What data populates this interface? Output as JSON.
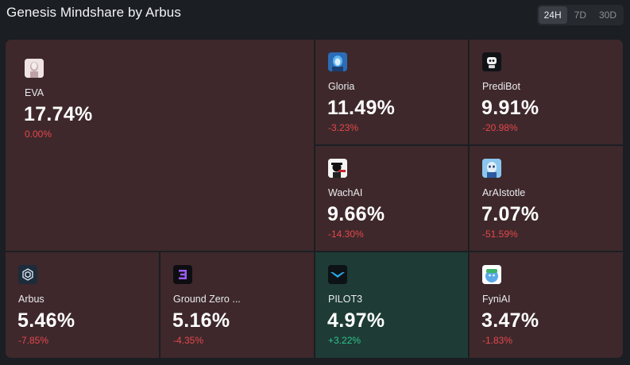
{
  "header": {
    "title": "Genesis Mindshare by Arbus",
    "ranges": [
      "24H",
      "7D",
      "30D"
    ],
    "active_range": "24H"
  },
  "colors": {
    "negative_tile": "#3e282b",
    "positive_tile": "#1e3b35",
    "negative_text": "#e5484d",
    "positive_text": "#30c48d"
  },
  "tiles": [
    {
      "name": "EVA",
      "share": "17.74%",
      "change": "0.00%",
      "trend": "down",
      "icon": "eva-avatar-icon"
    },
    {
      "name": "Gloria",
      "share": "11.49%",
      "change": "-3.23%",
      "trend": "down",
      "icon": "gloria-avatar-icon"
    },
    {
      "name": "PrediBot",
      "share": "9.91%",
      "change": "-20.98%",
      "trend": "down",
      "icon": "predibot-robot-icon"
    },
    {
      "name": "WachAI",
      "share": "9.66%",
      "change": "-14.30%",
      "trend": "down",
      "icon": "wachai-avatar-icon"
    },
    {
      "name": "ArAIstotle",
      "share": "7.07%",
      "change": "-51.59%",
      "trend": "down",
      "icon": "araistotle-avatar-icon"
    },
    {
      "name": "Arbus",
      "share": "5.46%",
      "change": "-7.85%",
      "trend": "down",
      "icon": "arbus-logo-icon"
    },
    {
      "name": "Ground Zero ...",
      "share": "5.16%",
      "change": "-4.35%",
      "trend": "down",
      "icon": "ground-zero-logo-icon"
    },
    {
      "name": "PILOT3",
      "share": "4.97%",
      "change": "+3.22%",
      "trend": "up",
      "icon": "pilot3-logo-icon"
    },
    {
      "name": "FyniAI",
      "share": "3.47%",
      "change": "-1.83%",
      "trend": "down",
      "icon": "fyniai-avatar-icon"
    }
  ]
}
